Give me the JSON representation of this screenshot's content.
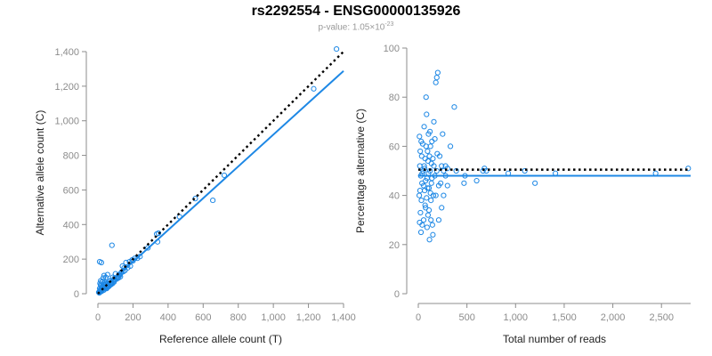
{
  "title": "rs2292554 - ENSG00000135926",
  "subtitle": {
    "prefix": "p-value: 1.05×10",
    "exponent": "-23"
  },
  "chart_data": [
    {
      "type": "scatter",
      "title": "",
      "xlabel": "Reference allele count (T)",
      "ylabel": "Alternative allele count (C)",
      "xlim": [
        0,
        1400
      ],
      "ylim": [
        0,
        1400
      ],
      "xticks": [
        0,
        200,
        400,
        600,
        800,
        1000,
        1200,
        1400
      ],
      "xtick_labels": [
        "0",
        "200",
        "400",
        "600",
        "800",
        "1,000",
        "1,200",
        "1,400"
      ],
      "yticks": [
        0,
        200,
        400,
        600,
        800,
        1000,
        1200,
        1400
      ],
      "ytick_labels": [
        "0",
        "200",
        "400",
        "600",
        "800",
        "1,000",
        "1,200",
        "1,400"
      ],
      "point_color": "#1e88e5",
      "points": [
        [
          1360,
          1415
        ],
        [
          1230,
          1185
        ],
        [
          720,
          685
        ],
        [
          655,
          540
        ],
        [
          555,
          550
        ],
        [
          465,
          445
        ],
        [
          345,
          350
        ],
        [
          335,
          345
        ],
        [
          340,
          300
        ],
        [
          285,
          265
        ],
        [
          240,
          215
        ],
        [
          210,
          205
        ],
        [
          195,
          195
        ],
        [
          180,
          185
        ],
        [
          160,
          180
        ],
        [
          150,
          150
        ],
        [
          140,
          160
        ],
        [
          135,
          125
        ],
        [
          120,
          110
        ],
        [
          110,
          95
        ],
        [
          100,
          115
        ],
        [
          95,
          90
        ],
        [
          90,
          80
        ],
        [
          85,
          95
        ],
        [
          80,
          280
        ],
        [
          75,
          60
        ],
        [
          70,
          75
        ],
        [
          65,
          70
        ],
        [
          60,
          55
        ],
        [
          55,
          60
        ],
        [
          50,
          45
        ],
        [
          45,
          50
        ],
        [
          40,
          35
        ],
        [
          35,
          40
        ],
        [
          30,
          30
        ],
        [
          25,
          35
        ],
        [
          20,
          20
        ],
        [
          15,
          25
        ],
        [
          12,
          10
        ],
        [
          10,
          185
        ],
        [
          20,
          180
        ],
        [
          8,
          5
        ],
        [
          5,
          8
        ],
        [
          30,
          90
        ],
        [
          25,
          70
        ],
        [
          40,
          65
        ],
        [
          50,
          30
        ],
        [
          60,
          40
        ],
        [
          70,
          50
        ],
        [
          15,
          50
        ],
        [
          18,
          45
        ],
        [
          22,
          15
        ],
        [
          28,
          25
        ],
        [
          33,
          20
        ],
        [
          38,
          28
        ],
        [
          42,
          38
        ],
        [
          48,
          32
        ],
        [
          52,
          42
        ],
        [
          58,
          48
        ],
        [
          62,
          52
        ],
        [
          68,
          58
        ],
        [
          72,
          62
        ],
        [
          78,
          66
        ],
        [
          88,
          72
        ],
        [
          98,
          82
        ],
        [
          105,
          92
        ],
        [
          115,
          100
        ],
        [
          125,
          108
        ],
        [
          130,
          118
        ],
        [
          145,
          128
        ],
        [
          155,
          135
        ],
        [
          170,
          150
        ],
        [
          185,
          160
        ],
        [
          200,
          190
        ],
        [
          225,
          205
        ],
        [
          10,
          30
        ],
        [
          14,
          18
        ],
        [
          18,
          12
        ],
        [
          24,
          40
        ],
        [
          30,
          55
        ],
        [
          36,
          48
        ],
        [
          44,
          58
        ],
        [
          56,
          38
        ],
        [
          64,
          44
        ],
        [
          76,
          54
        ],
        [
          84,
          60
        ],
        [
          92,
          68
        ],
        [
          108,
          85
        ],
        [
          118,
          92
        ],
        [
          128,
          98
        ],
        [
          12,
          60
        ],
        [
          16,
          75
        ],
        [
          35,
          105
        ],
        [
          45,
          95
        ],
        [
          55,
          110
        ]
      ],
      "series": [
        {
          "name": "",
          "kind": "fit",
          "style": "solid",
          "color": "#1e88e5",
          "x": [
            0,
            1400
          ],
          "y": [
            0,
            1288
          ]
        },
        {
          "name": "",
          "kind": "reference",
          "style": "dotted",
          "color": "#000000",
          "x": [
            0,
            1400
          ],
          "y": [
            0,
            1400
          ]
        }
      ]
    },
    {
      "type": "scatter",
      "title": "",
      "xlabel": "Total number of reads",
      "ylabel": "Percentage alternative (C)",
      "xlim": [
        0,
        2800
      ],
      "ylim": [
        0,
        100
      ],
      "xticks": [
        0,
        500,
        1000,
        1500,
        2000,
        2500
      ],
      "xtick_labels": [
        "0",
        "500",
        "1,000",
        "1,500",
        "2,000",
        "2,500"
      ],
      "yticks": [
        0,
        20,
        40,
        60,
        80,
        100
      ],
      "ytick_labels": [
        "0",
        "20",
        "40",
        "60",
        "80",
        "100"
      ],
      "point_color": "#1e88e5",
      "points": [
        [
          2775,
          51
        ],
        [
          2440,
          49
        ],
        [
          1410,
          49
        ],
        [
          1200,
          45
        ],
        [
          1095,
          50
        ],
        [
          925,
          49
        ],
        [
          700,
          50
        ],
        [
          680,
          51
        ],
        [
          665,
          50
        ],
        [
          600,
          46
        ],
        [
          480,
          48
        ],
        [
          470,
          45
        ],
        [
          390,
          50
        ],
        [
          370,
          76
        ],
        [
          330,
          60
        ],
        [
          300,
          51
        ],
        [
          280,
          52
        ],
        [
          260,
          50
        ],
        [
          250,
          65
        ],
        [
          240,
          35
        ],
        [
          230,
          45
        ],
        [
          210,
          30
        ],
        [
          200,
          90
        ],
        [
          195,
          57
        ],
        [
          190,
          88
        ],
        [
          180,
          86
        ],
        [
          170,
          48
        ],
        [
          160,
          70
        ],
        [
          155,
          40
        ],
        [
          150,
          55
        ],
        [
          145,
          28
        ],
        [
          140,
          62
        ],
        [
          135,
          45
        ],
        [
          130,
          38
        ],
        [
          125,
          60
        ],
        [
          120,
          50
        ],
        [
          115,
          22
        ],
        [
          110,
          43
        ],
        [
          105,
          65
        ],
        [
          100,
          32
        ],
        [
          95,
          58
        ],
        [
          90,
          47
        ],
        [
          85,
          73
        ],
        [
          80,
          80
        ],
        [
          75,
          35
        ],
        [
          70,
          55
        ],
        [
          65,
          42
        ],
        [
          60,
          68
        ],
        [
          55,
          30
        ],
        [
          50,
          50
        ],
        [
          45,
          61
        ],
        [
          40,
          28
        ],
        [
          38,
          45
        ],
        [
          35,
          56
        ],
        [
          32,
          38
        ],
        [
          30,
          62
        ],
        [
          28,
          25
        ],
        [
          25,
          48
        ],
        [
          22,
          33
        ],
        [
          20,
          58
        ],
        [
          18,
          42
        ],
        [
          16,
          52
        ],
        [
          14,
          29
        ],
        [
          12,
          64
        ],
        [
          10,
          40
        ],
        [
          60,
          52
        ],
        [
          70,
          36
        ],
        [
          80,
          60
        ],
        [
          90,
          27
        ],
        [
          100,
          54
        ],
        [
          110,
          34
        ],
        [
          120,
          66
        ],
        [
          130,
          30
        ],
        [
          140,
          47
        ],
        [
          150,
          24
        ],
        [
          160,
          52
        ],
        [
          170,
          63
        ],
        [
          180,
          40
        ],
        [
          190,
          50
        ],
        [
          210,
          44
        ],
        [
          220,
          56
        ],
        [
          240,
          52
        ],
        [
          260,
          40
        ],
        [
          280,
          48
        ],
        [
          300,
          44
        ],
        [
          40,
          49
        ],
        [
          55,
          44
        ],
        [
          65,
          51
        ],
        [
          75,
          46
        ],
        [
          85,
          39
        ],
        [
          95,
          43
        ],
        [
          105,
          49
        ],
        [
          115,
          56
        ],
        [
          125,
          41
        ],
        [
          135,
          53
        ]
      ],
      "series": [
        {
          "name": "",
          "kind": "fit",
          "style": "solid",
          "color": "#1e88e5",
          "x": [
            0,
            2800
          ],
          "y": [
            48,
            48
          ]
        },
        {
          "name": "",
          "kind": "reference",
          "style": "dotted",
          "color": "#000000",
          "x": [
            0,
            2800
          ],
          "y": [
            50.5,
            50.5
          ]
        }
      ]
    }
  ]
}
